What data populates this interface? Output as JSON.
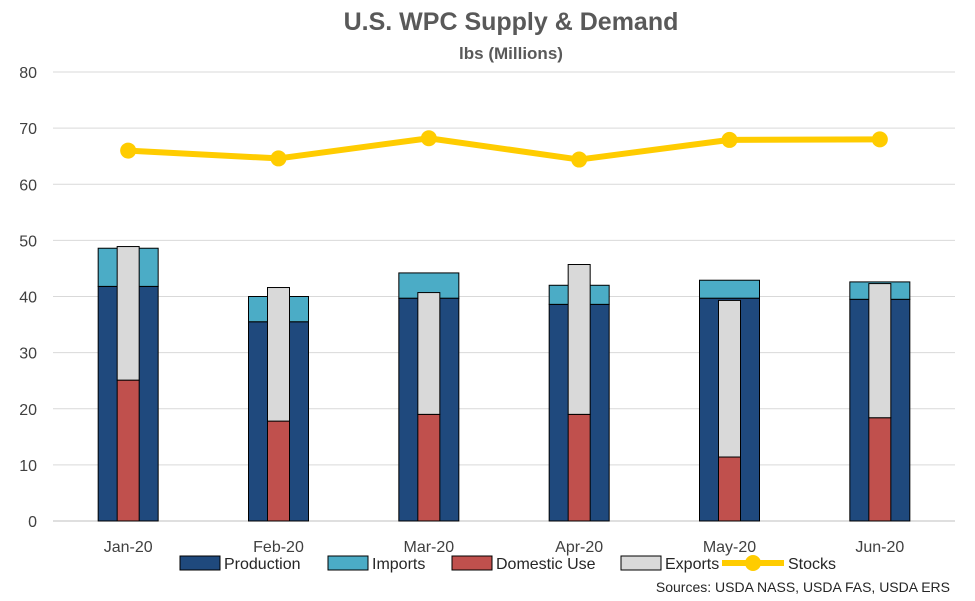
{
  "chart_data": {
    "type": "bar",
    "title": "U.S. WPC Supply & Demand",
    "subtitle": "lbs (Millions)",
    "source": "Sources: USDA NASS, USDA FAS, USDA ERS",
    "categories": [
      "Jan-20",
      "Feb-20",
      "Mar-20",
      "Apr-20",
      "May-20",
      "Jun-20"
    ],
    "ylim": [
      0,
      80
    ],
    "yticks": [
      0,
      10,
      20,
      30,
      40,
      50,
      60,
      70,
      80
    ],
    "grid": true,
    "legend_position": "bottom",
    "series": [
      {
        "name": "Production",
        "kind": "stacked-bar",
        "stack": "supply",
        "color": "#1f497d",
        "values": [
          41.8,
          35.5,
          39.7,
          38.6,
          39.7,
          39.5
        ]
      },
      {
        "name": "Imports",
        "kind": "stacked-bar",
        "stack": "supply",
        "color": "#4bacc6",
        "values": [
          6.8,
          4.5,
          4.5,
          3.4,
          3.2,
          3.1
        ]
      },
      {
        "name": "Domestic Use",
        "kind": "stacked-bar",
        "stack": "demand",
        "color": "#c0504d",
        "values": [
          25.1,
          17.8,
          19.0,
          19.0,
          11.4,
          18.4
        ]
      },
      {
        "name": "Exports",
        "kind": "stacked-bar",
        "stack": "demand",
        "color": "#d9d9d9",
        "values": [
          23.8,
          23.8,
          21.7,
          26.7,
          27.9,
          23.9
        ]
      },
      {
        "name": "Stocks",
        "kind": "line",
        "color": "#ffcc00",
        "values": [
          66.0,
          64.6,
          68.2,
          64.4,
          67.9,
          68.0
        ]
      }
    ]
  }
}
